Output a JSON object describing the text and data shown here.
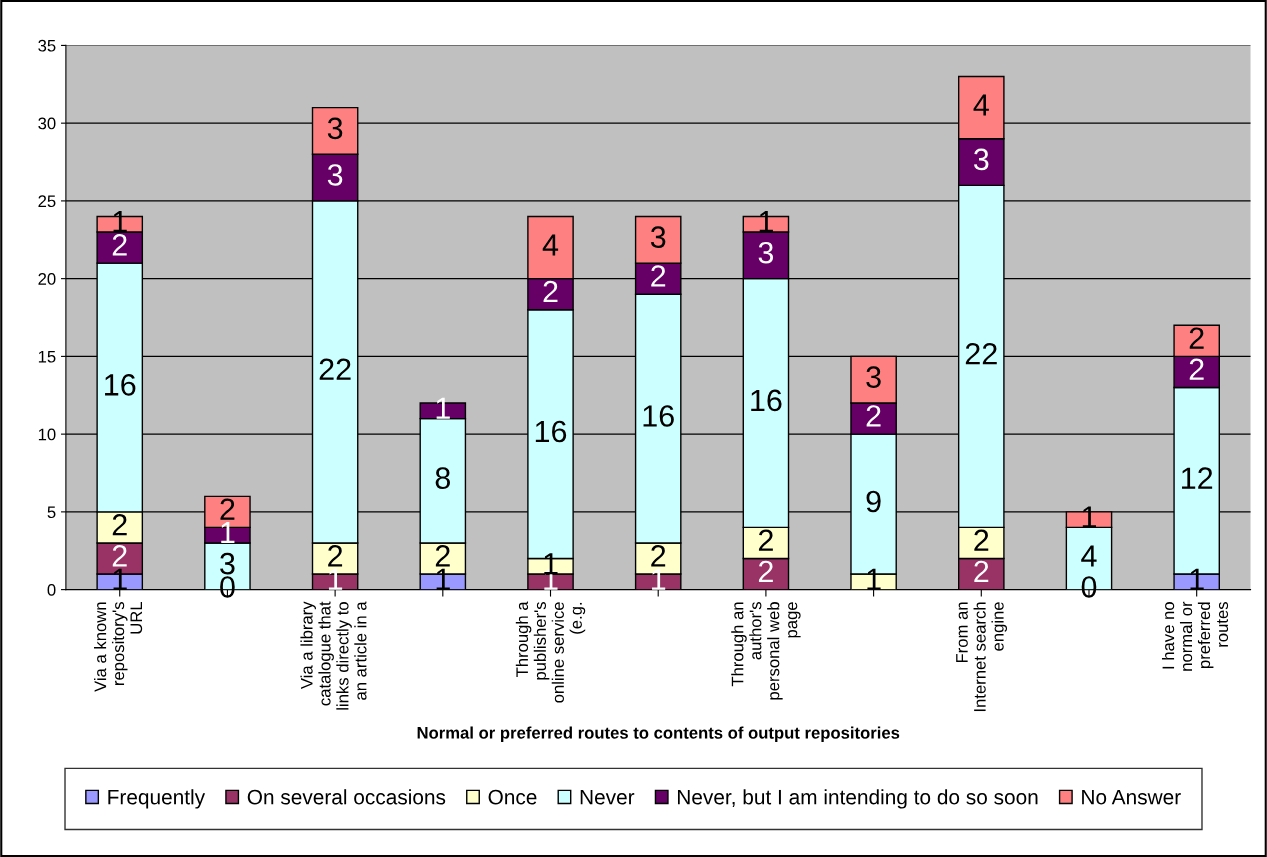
{
  "chart_data": {
    "type": "bar",
    "stacked": true,
    "xlabel": "Normal or preferred routes to contents of output repositories",
    "categories": [
      "Via a known\nrepository's\nURL",
      null,
      "Via a library\ncatalogue that\nlinks directly to\nan article in a",
      null,
      "Through a\npublisher's\nonline service\n(e.g.",
      null,
      "Through an\nauthor's\npersonal web\npage",
      null,
      "From an\nInternet search\nengine",
      null,
      "I have no\nnormal or\npreferred\nroutes"
    ],
    "series": [
      {
        "name": "Frequently",
        "color": "#9999ff",
        "values": [
          1,
          0,
          0,
          1,
          0,
          0,
          0,
          0,
          0,
          0,
          1
        ],
        "value_labels": [
          "1",
          "0",
          null,
          "1",
          null,
          null,
          null,
          null,
          null,
          "0",
          "1"
        ]
      },
      {
        "name": "On several occasions",
        "color": "#993366",
        "values": [
          2,
          0,
          1,
          0,
          1,
          1,
          2,
          0,
          2,
          0,
          0
        ],
        "value_labels": [
          "2",
          null,
          "1",
          null,
          "1",
          "1",
          "2",
          null,
          "2",
          null,
          null
        ]
      },
      {
        "name": "Once",
        "color": "#ffffcc",
        "values": [
          2,
          0,
          2,
          2,
          1,
          2,
          2,
          1,
          2,
          0,
          0
        ],
        "value_labels": [
          "2",
          null,
          "2",
          "2",
          "1",
          "2",
          "2",
          "1",
          "2",
          null,
          null
        ]
      },
      {
        "name": "Never",
        "color": "#ccffff",
        "values": [
          16,
          3,
          22,
          8,
          16,
          16,
          16,
          9,
          22,
          4,
          12
        ],
        "value_labels": [
          "16",
          "3",
          "22",
          "8",
          "16",
          "16",
          "16",
          "9",
          "22",
          "4",
          "12"
        ]
      },
      {
        "name": "Never, but I am intending to do so soon",
        "color": "#660066",
        "values": [
          2,
          1,
          3,
          1,
          2,
          2,
          3,
          2,
          3,
          0,
          2
        ],
        "value_labels": [
          "2",
          "1",
          "3",
          "1",
          "2",
          "2",
          "3",
          "2",
          "3",
          null,
          "2"
        ]
      },
      {
        "name": "No Answer",
        "color": "#ff8080",
        "values": [
          1,
          2,
          3,
          0,
          4,
          3,
          1,
          3,
          4,
          1,
          2
        ],
        "value_labels": [
          "1",
          "2",
          "3",
          null,
          "4",
          "3",
          "1",
          "3",
          "4",
          "1",
          "2"
        ]
      }
    ],
    "ylim": [
      0,
      35
    ],
    "yticks": [
      0,
      5,
      10,
      15,
      20,
      25,
      30,
      35
    ],
    "grid": "y",
    "legend": "bottom"
  }
}
